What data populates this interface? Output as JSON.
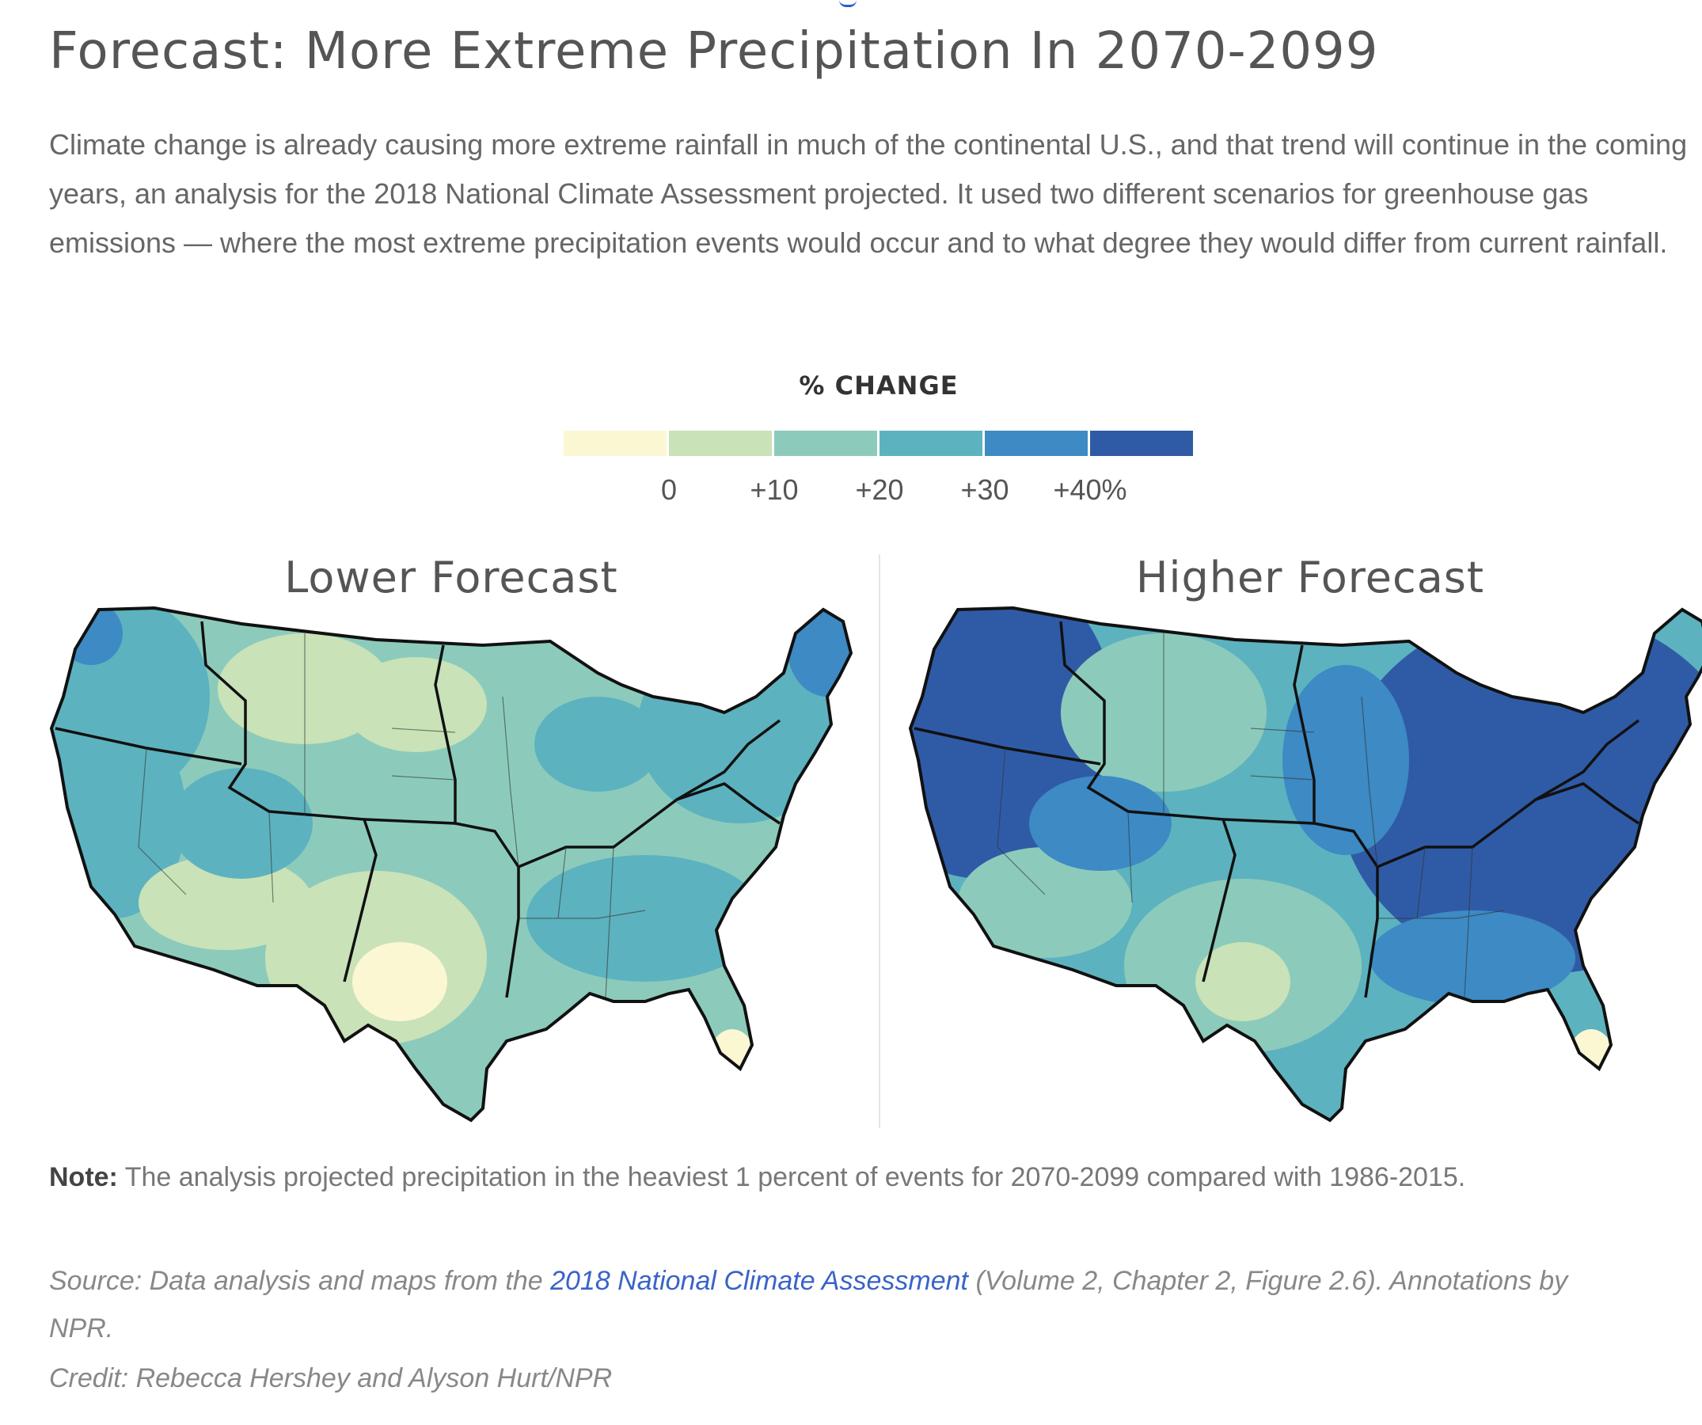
{
  "title": "Forecast: More Extreme Precipitation In 2070-2099",
  "intro": "Climate change is already causing more extreme rainfall in much of the continental U.S., and that trend will continue in the coming years, an analysis for the 2018 National Climate Assessment projected. It used two different scenarios for greenhouse gas emissions — where the most extreme precipitation events would occur and to what degree they would differ from current rainfall.",
  "legend": {
    "title": "% CHANGE",
    "colors": [
      "#fbf7d3",
      "#c9e2b8",
      "#8ccbbb",
      "#5db2bf",
      "#3d8ac4",
      "#2f5ba6"
    ],
    "ticks": [
      "0",
      "+10",
      "+20",
      "+30",
      "+40%"
    ]
  },
  "maps": [
    {
      "title": "Lower Forecast"
    },
    {
      "title": "Higher Forecast"
    }
  ],
  "note": {
    "label": "Note:",
    "text": "The analysis projected precipitation in the heaviest 1 percent of events for 2070-2099 compared with 1986-2015."
  },
  "source": {
    "prefix": "Source: Data analysis and maps from the",
    "link_text": "2018 National Climate Assessment",
    "suffix": "(Volume 2, Chapter 2, Figure 2.6). Annotations by NPR."
  },
  "credit": "Credit: Rebecca Hershey and Alyson Hurt/NPR"
}
